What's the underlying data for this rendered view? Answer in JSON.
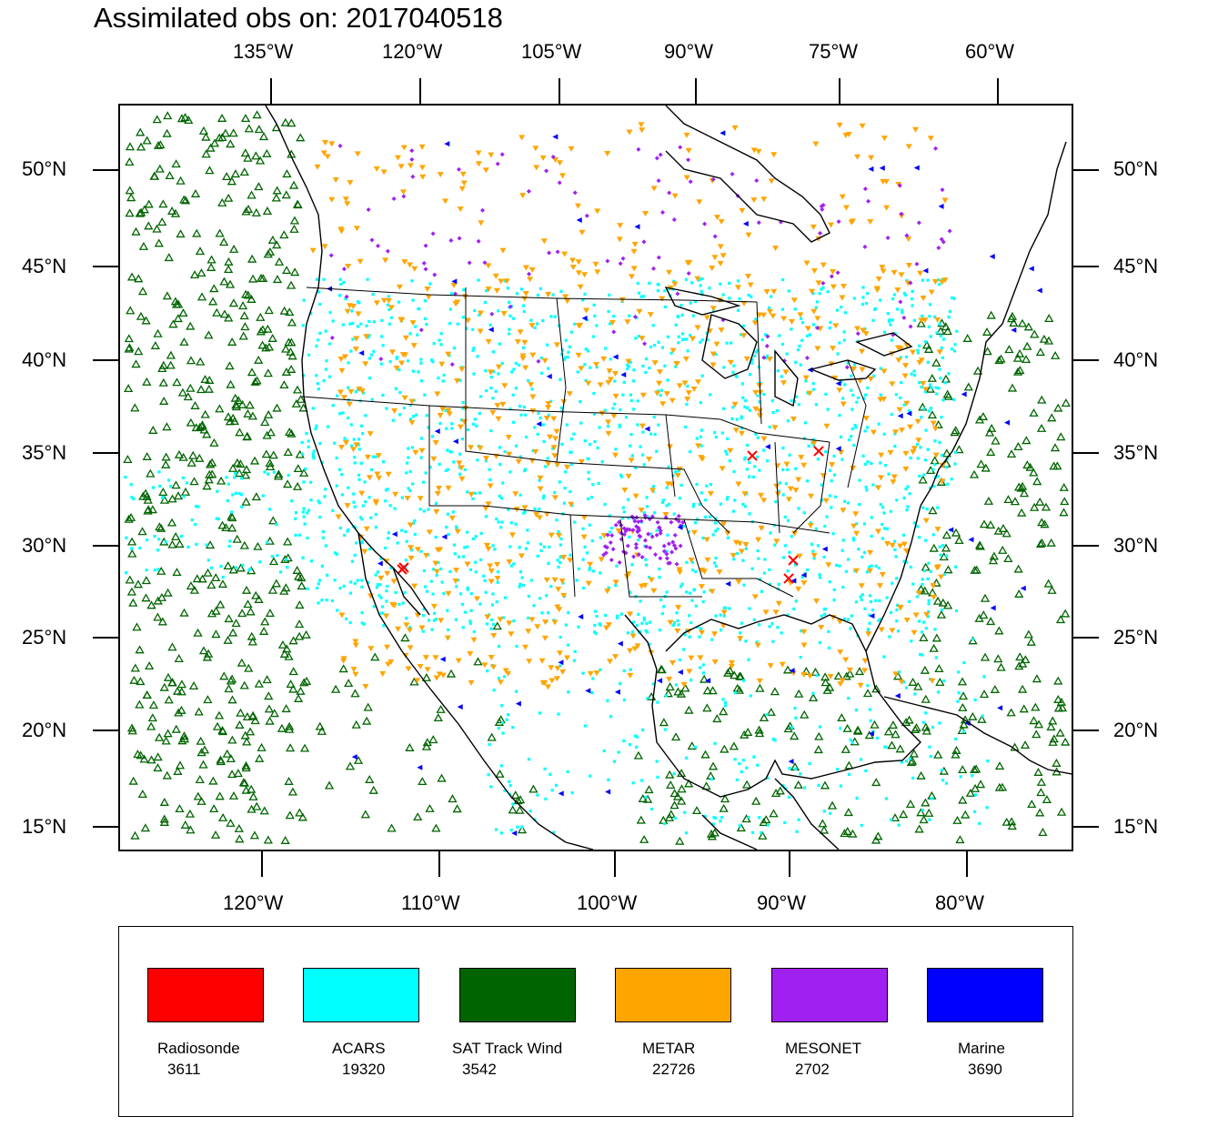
{
  "title": "Assimilated obs on: 2017040518",
  "top_lon_labels": [
    "135°W",
    "120°W",
    "105°W",
    "90°W",
    "75°W",
    "60°W"
  ],
  "bottom_lon_labels": [
    "120°W",
    "110°W",
    "100°W",
    "90°W",
    "80°W"
  ],
  "left_lat_labels": [
    "50°N",
    "45°N",
    "40°N",
    "35°N",
    "30°N",
    "25°N",
    "20°N",
    "15°N"
  ],
  "right_lat_labels": [
    "50°N",
    "45°N",
    "40°N",
    "35°N",
    "30°N",
    "25°N",
    "20°N",
    "15°N"
  ],
  "legend": [
    {
      "name": "Radiosonde",
      "count": "3611",
      "color": "#ff0000"
    },
    {
      "name": "ACARS",
      "count": "19320",
      "color": "#00ffff"
    },
    {
      "name": "SAT Track Wind",
      "count": "3542",
      "color": "#006400"
    },
    {
      "name": "METAR",
      "count": "22726",
      "color": "#ffa500"
    },
    {
      "name": "MESONET",
      "count": "2702",
      "color": "#a020f0"
    },
    {
      "name": "Marine",
      "count": "3690",
      "color": "#0000ff"
    }
  ],
  "colors": {
    "coastline": "#000000",
    "background": "#ffffff"
  }
}
